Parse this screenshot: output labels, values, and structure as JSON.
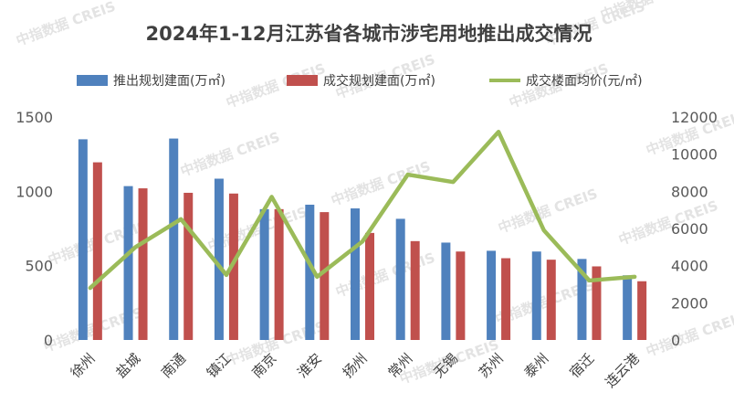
{
  "chart_data": {
    "type": "bar",
    "title": "2024年1-12月江苏省各城市涉宅用地推出成交情况",
    "categories": [
      "徐州",
      "盐城",
      "南通",
      "镇江",
      "南京",
      "淮安",
      "扬州",
      "常州",
      "无锡",
      "苏州",
      "泰州",
      "宿迁",
      "连云港"
    ],
    "series": [
      {
        "name": "推出规划建面(万㎡)",
        "type": "bar",
        "axis": "left",
        "color": "#4f81bd",
        "values": [
          1350,
          1035,
          1355,
          1085,
          880,
          910,
          885,
          815,
          655,
          600,
          595,
          545,
          435
        ]
      },
      {
        "name": "成交规划建面(万㎡)",
        "type": "bar",
        "axis": "left",
        "color": "#c0504d",
        "values": [
          1195,
          1020,
          990,
          985,
          880,
          860,
          720,
          665,
          595,
          550,
          540,
          495,
          395
        ]
      },
      {
        "name": "成交楼面均价(元/㎡)",
        "type": "line",
        "axis": "right",
        "color": "#9bbb59",
        "values": [
          2800,
          5000,
          6500,
          3500,
          7700,
          3400,
          5300,
          8900,
          8500,
          11200,
          5900,
          3200,
          3400
        ]
      }
    ],
    "y_left": {
      "min": 0,
      "max": 1500,
      "ticks": [
        0,
        500,
        1000,
        1500
      ]
    },
    "y_right": {
      "min": 0,
      "max": 12000,
      "ticks": [
        0,
        2000,
        4000,
        6000,
        8000,
        10000,
        12000
      ]
    },
    "legend_position": "top",
    "grid": false
  },
  "watermark": "中指数据 CREIS"
}
